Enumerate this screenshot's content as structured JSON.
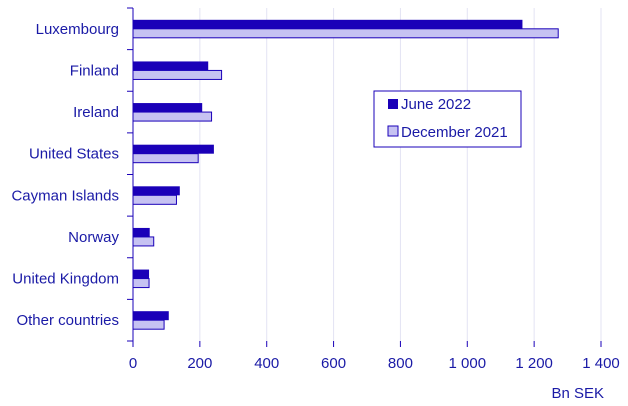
{
  "chart_data": {
    "type": "bar",
    "orientation": "horizontal",
    "categories": [
      "Luxembourg",
      "Finland",
      "Ireland",
      "United States",
      "Cayman Islands",
      "Norway",
      "United Kingdom",
      "Other countries"
    ],
    "series": [
      {
        "name": "June 2022",
        "values": [
          1165,
          225,
          207,
          242,
          140,
          50,
          48,
          107
        ],
        "color": "#1a00b8"
      },
      {
        "name": "December 2021",
        "values": [
          1272,
          265,
          235,
          195,
          130,
          62,
          48,
          93
        ],
        "color": "#c6c2f2"
      }
    ],
    "x_ticks": [
      "0",
      "200",
      "400",
      "600",
      "800",
      "1 000",
      "1 200",
      "1 400"
    ],
    "x_tick_values": [
      0,
      200,
      400,
      600,
      800,
      1000,
      1200,
      1400
    ],
    "xlim": [
      0,
      1400
    ],
    "xlabel": "Bn SEK",
    "ylabel": "",
    "title": "",
    "grid": "vertical",
    "legend_position": "right-upper"
  },
  "colors": {
    "text": "#1a1aa6",
    "axis": "#1a00b8",
    "grid": "#e3e3f3",
    "bar_border": "#1a00b8"
  }
}
